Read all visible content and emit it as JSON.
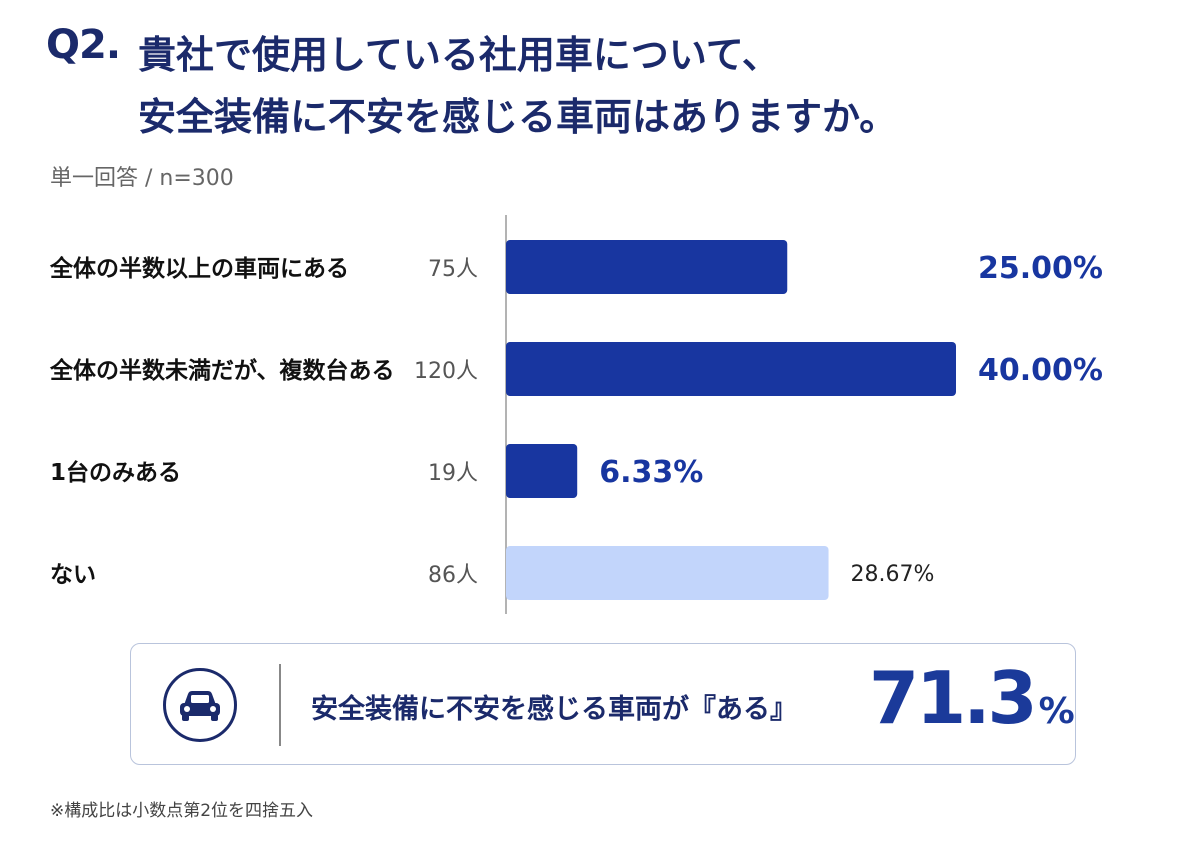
{
  "header": {
    "question_number": "Q2.",
    "title_line1": "貴社で使用している社用車について、",
    "title_line2": "安全装備に不安を感じる車両はありますか。",
    "subtitle": "単一回答 / n=300"
  },
  "chart_data": {
    "type": "bar",
    "orientation": "horizontal",
    "categories": [
      "全体の半数以上の車両にある",
      "全体の半数未満だが、複数台ある",
      "1台のみある",
      "ない"
    ],
    "counts": [
      "75人",
      "120人",
      "19人",
      "86人"
    ],
    "values": [
      25.0,
      40.0,
      6.33,
      28.67
    ],
    "value_labels": [
      "25.00%",
      "40.00%",
      "6.33%",
      "28.67%"
    ],
    "bar_colors": [
      "#1836a0",
      "#1836a0",
      "#1836a0",
      "#c2d5fb"
    ],
    "label_colors": [
      "#1836a0",
      "#1836a0",
      "#1836a0",
      "#222222"
    ],
    "highlighted": [
      true,
      true,
      true,
      false
    ],
    "xlim": [
      0,
      40
    ],
    "grid": false
  },
  "summary": {
    "icon": "car-icon",
    "text": "安全装備に不安を感じる車両が『ある』",
    "value": "71.3",
    "unit": "%"
  },
  "footnote": "※構成比は小数点第2位を四捨五入"
}
